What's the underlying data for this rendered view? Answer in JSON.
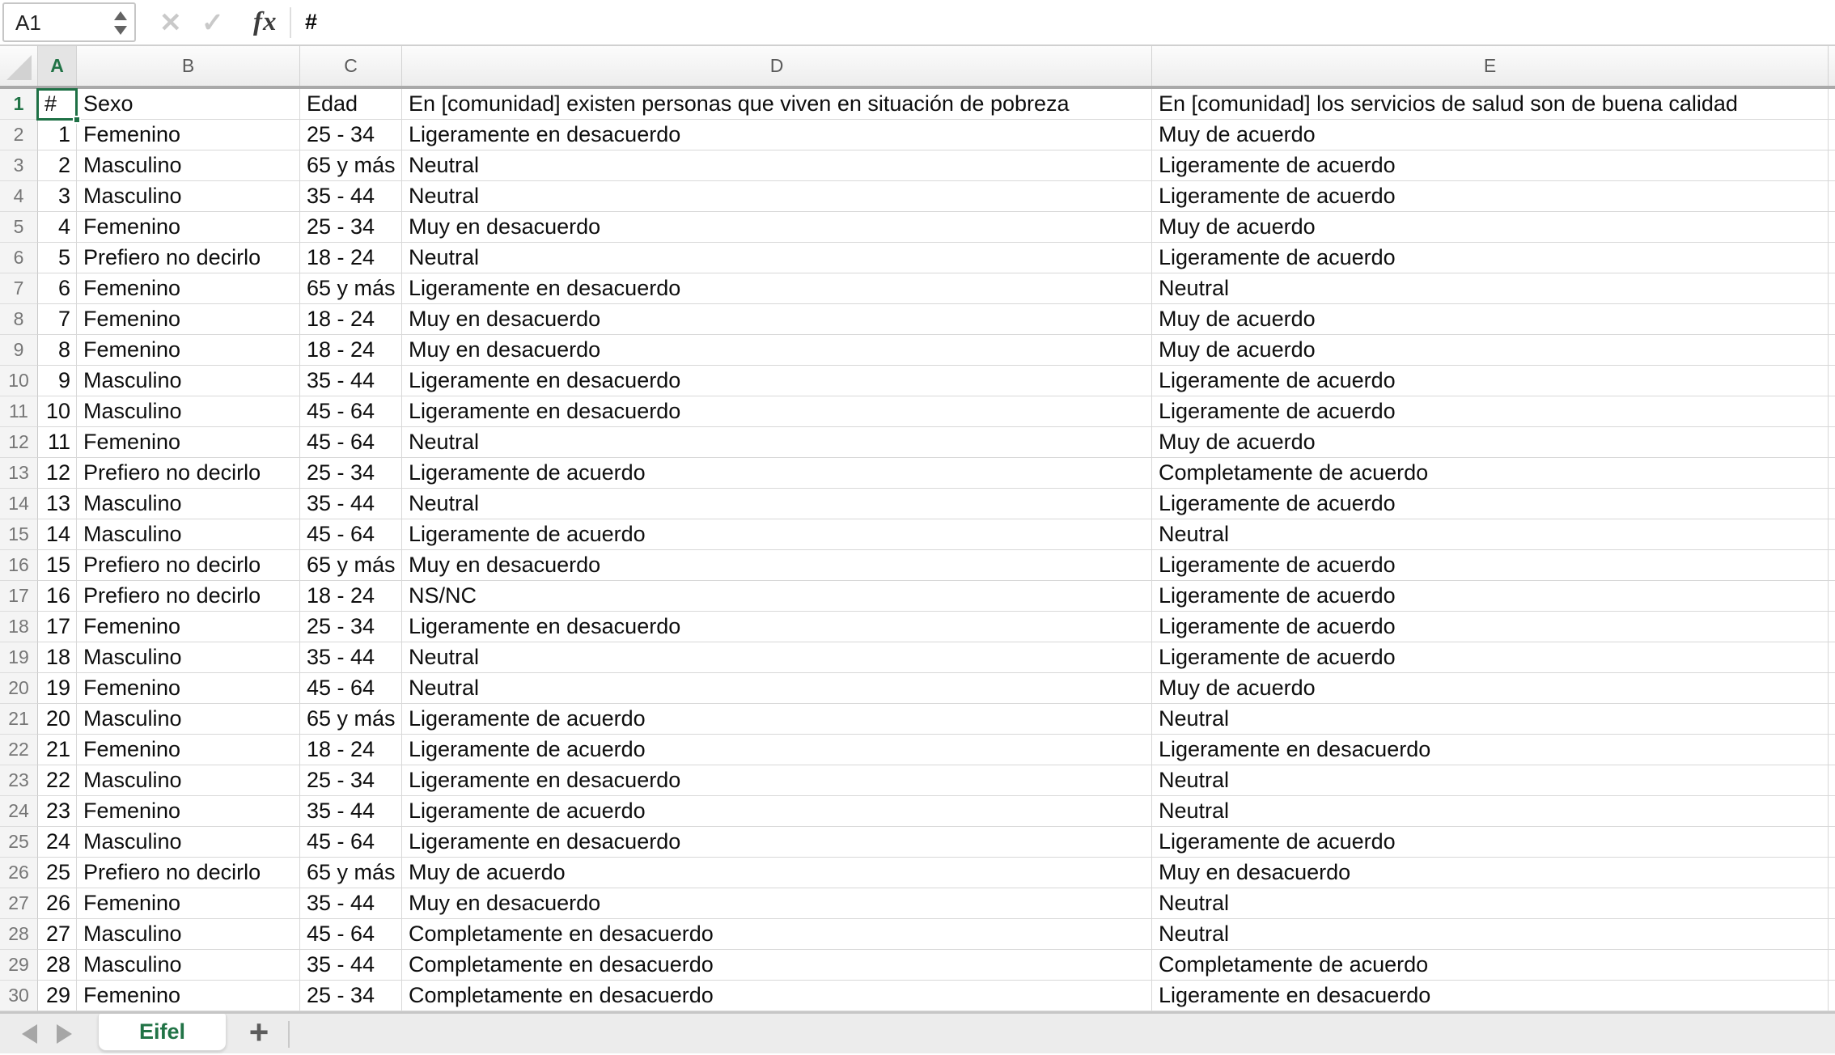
{
  "formula_bar": {
    "cell_reference": "A1",
    "content": "#",
    "cancel_icon": "✕",
    "confirm_icon": "✓",
    "function_icon": "fx"
  },
  "column_headers": [
    "A",
    "B",
    "C",
    "D",
    "E"
  ],
  "sheet": {
    "active_tab": "Eifel",
    "add_tab_label": "+"
  },
  "colors": {
    "accent_green": "#217346",
    "selection_border": "#1e7045",
    "gridline": "#d8d8d8",
    "header_separator": "#a9a9a9"
  },
  "table": {
    "rows": [
      {
        "row": "1",
        "id": "#",
        "sexo": "Sexo",
        "edad": "Edad",
        "q1": "En [comunidad] existen personas que viven en situación de pobreza",
        "q2": "En [comunidad] los servicios de salud son de buena calidad",
        "selected": true
      },
      {
        "row": "2",
        "id": "1",
        "sexo": "Femenino",
        "edad": "25 - 34",
        "q1": "Ligeramente en desacuerdo",
        "q2": "Muy de acuerdo"
      },
      {
        "row": "3",
        "id": "2",
        "sexo": "Masculino",
        "edad": "65 y más",
        "q1": "Neutral",
        "q2": "Ligeramente de acuerdo"
      },
      {
        "row": "4",
        "id": "3",
        "sexo": "Masculino",
        "edad": "35 - 44",
        "q1": "Neutral",
        "q2": "Ligeramente de acuerdo"
      },
      {
        "row": "5",
        "id": "4",
        "sexo": "Femenino",
        "edad": "25 - 34",
        "q1": "Muy en desacuerdo",
        "q2": "Muy de acuerdo"
      },
      {
        "row": "6",
        "id": "5",
        "sexo": "Prefiero no decirlo",
        "edad": "18 - 24",
        "q1": "Neutral",
        "q2": "Ligeramente de acuerdo"
      },
      {
        "row": "7",
        "id": "6",
        "sexo": "Femenino",
        "edad": "65 y más",
        "q1": "Ligeramente en desacuerdo",
        "q2": "Neutral"
      },
      {
        "row": "8",
        "id": "7",
        "sexo": "Femenino",
        "edad": "18 - 24",
        "q1": "Muy en desacuerdo",
        "q2": "Muy de acuerdo"
      },
      {
        "row": "9",
        "id": "8",
        "sexo": "Femenino",
        "edad": "18 - 24",
        "q1": "Muy en desacuerdo",
        "q2": "Muy de acuerdo"
      },
      {
        "row": "10",
        "id": "9",
        "sexo": "Masculino",
        "edad": "35 - 44",
        "q1": "Ligeramente en desacuerdo",
        "q2": "Ligeramente de acuerdo"
      },
      {
        "row": "11",
        "id": "10",
        "sexo": "Masculino",
        "edad": "45 - 64",
        "q1": "Ligeramente en desacuerdo",
        "q2": "Ligeramente de acuerdo"
      },
      {
        "row": "12",
        "id": "11",
        "sexo": "Femenino",
        "edad": "45 - 64",
        "q1": "Neutral",
        "q2": "Muy de acuerdo"
      },
      {
        "row": "13",
        "id": "12",
        "sexo": "Prefiero no decirlo",
        "edad": "25 - 34",
        "q1": "Ligeramente de acuerdo",
        "q2": "Completamente de acuerdo"
      },
      {
        "row": "14",
        "id": "13",
        "sexo": "Masculino",
        "edad": "35 - 44",
        "q1": "Neutral",
        "q2": "Ligeramente de acuerdo"
      },
      {
        "row": "15",
        "id": "14",
        "sexo": "Masculino",
        "edad": "45 - 64",
        "q1": "Ligeramente de acuerdo",
        "q2": "Neutral"
      },
      {
        "row": "16",
        "id": "15",
        "sexo": "Prefiero no decirlo",
        "edad": "65 y más",
        "q1": "Muy en desacuerdo",
        "q2": "Ligeramente de acuerdo"
      },
      {
        "row": "17",
        "id": "16",
        "sexo": "Prefiero no decirlo",
        "edad": "18 - 24",
        "q1": "NS/NC",
        "q2": "Ligeramente de acuerdo"
      },
      {
        "row": "18",
        "id": "17",
        "sexo": "Femenino",
        "edad": "25 - 34",
        "q1": "Ligeramente en desacuerdo",
        "q2": "Ligeramente de acuerdo"
      },
      {
        "row": "19",
        "id": "18",
        "sexo": "Masculino",
        "edad": "35 - 44",
        "q1": "Neutral",
        "q2": "Ligeramente de acuerdo"
      },
      {
        "row": "20",
        "id": "19",
        "sexo": "Femenino",
        "edad": "45 - 64",
        "q1": "Neutral",
        "q2": "Muy de acuerdo"
      },
      {
        "row": "21",
        "id": "20",
        "sexo": "Masculino",
        "edad": "65 y más",
        "q1": "Ligeramente de acuerdo",
        "q2": "Neutral"
      },
      {
        "row": "22",
        "id": "21",
        "sexo": "Femenino",
        "edad": "18 - 24",
        "q1": "Ligeramente de acuerdo",
        "q2": "Ligeramente en desacuerdo"
      },
      {
        "row": "23",
        "id": "22",
        "sexo": "Masculino",
        "edad": "25 - 34",
        "q1": "Ligeramente en desacuerdo",
        "q2": "Neutral"
      },
      {
        "row": "24",
        "id": "23",
        "sexo": "Femenino",
        "edad": "35 - 44",
        "q1": "Ligeramente de acuerdo",
        "q2": "Neutral"
      },
      {
        "row": "25",
        "id": "24",
        "sexo": "Masculino",
        "edad": "45 - 64",
        "q1": "Ligeramente en desacuerdo",
        "q2": "Ligeramente de acuerdo"
      },
      {
        "row": "26",
        "id": "25",
        "sexo": "Prefiero no decirlo",
        "edad": "65 y más",
        "q1": "Muy de acuerdo",
        "q2": "Muy en desacuerdo"
      },
      {
        "row": "27",
        "id": "26",
        "sexo": "Femenino",
        "edad": "35 - 44",
        "q1": "Muy en desacuerdo",
        "q2": "Neutral"
      },
      {
        "row": "28",
        "id": "27",
        "sexo": "Masculino",
        "edad": "45 - 64",
        "q1": "Completamente en desacuerdo",
        "q2": "Neutral"
      },
      {
        "row": "29",
        "id": "28",
        "sexo": "Masculino",
        "edad": "35 - 44",
        "q1": "Completamente en desacuerdo",
        "q2": "Completamente de acuerdo"
      },
      {
        "row": "30",
        "id": "29",
        "sexo": "Femenino",
        "edad": "25 - 34",
        "q1": "Completamente en desacuerdo",
        "q2": "Ligeramente en desacuerdo"
      }
    ]
  }
}
